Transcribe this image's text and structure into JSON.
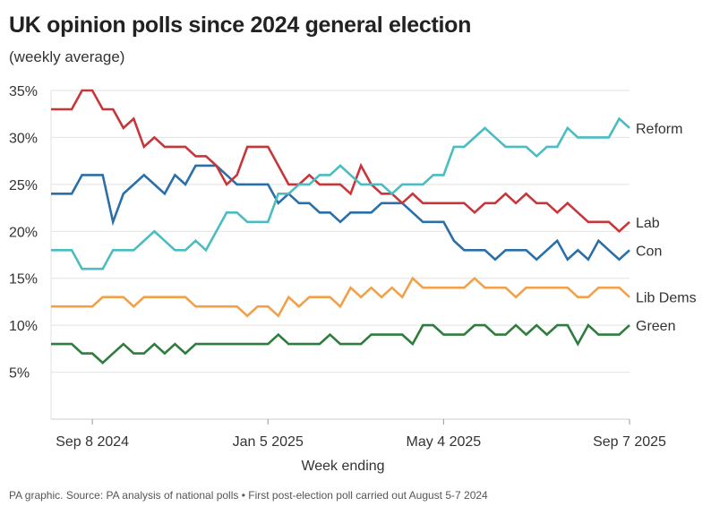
{
  "title": "UK opinion polls since 2024 general election",
  "subtitle": "(weekly average)",
  "footer": "PA graphic. Source: PA analysis of national polls • First post-election poll carried out August 5-7 2024",
  "chart_data": {
    "type": "line",
    "title": "UK opinion polls since 2024 general election",
    "subtitle": "(weekly average)",
    "xlabel": "Week ending",
    "ylabel": "",
    "ylim": [
      0,
      35
    ],
    "yticks": [
      5,
      10,
      15,
      20,
      25,
      30,
      35
    ],
    "ytick_labels": [
      "5%",
      "10%",
      "15%",
      "20%",
      "25%",
      "30%",
      "35%"
    ],
    "xtick_labels": [
      {
        "label": "Sep 8 2024",
        "date": "2024-09-08"
      },
      {
        "label": "Jan 5 2025",
        "date": "2025-01-05"
      },
      {
        "label": "May 4 2025",
        "date": "2025-05-04"
      },
      {
        "label": "Sep 7 2025",
        "date": "2025-09-07"
      }
    ],
    "grid": true,
    "legend": "right (labels at line ends)",
    "x": [
      "2024-08-11",
      "2024-08-18",
      "2024-08-25",
      "2024-09-01",
      "2024-09-08",
      "2024-09-15",
      "2024-09-22",
      "2024-09-29",
      "2024-10-06",
      "2024-10-13",
      "2024-10-20",
      "2024-10-27",
      "2024-11-03",
      "2024-11-10",
      "2024-11-17",
      "2024-11-24",
      "2024-12-01",
      "2024-12-08",
      "2024-12-15",
      "2024-12-22",
      "2024-12-29",
      "2025-01-05",
      "2025-01-12",
      "2025-01-19",
      "2025-01-26",
      "2025-02-02",
      "2025-02-09",
      "2025-02-16",
      "2025-02-23",
      "2025-03-02",
      "2025-03-09",
      "2025-03-16",
      "2025-03-23",
      "2025-03-30",
      "2025-04-06",
      "2025-04-13",
      "2025-04-20",
      "2025-04-27",
      "2025-05-04",
      "2025-05-11",
      "2025-05-18",
      "2025-05-25",
      "2025-06-01",
      "2025-06-08",
      "2025-06-15",
      "2025-06-22",
      "2025-06-29",
      "2025-07-06",
      "2025-07-13",
      "2025-07-20",
      "2025-07-27",
      "2025-08-03",
      "2025-08-10",
      "2025-08-17",
      "2025-08-24",
      "2025-08-31",
      "2025-09-07"
    ],
    "series": [
      {
        "name": "Green",
        "color": "#2e7d3e",
        "values": [
          8,
          8,
          8,
          7,
          7,
          6,
          7,
          8,
          7,
          7,
          8,
          7,
          8,
          7,
          8,
          8,
          8,
          8,
          8,
          8,
          8,
          8,
          9,
          8,
          8,
          8,
          8,
          9,
          8,
          8,
          8,
          9,
          9,
          9,
          9,
          8,
          10,
          10,
          9,
          9,
          9,
          10,
          10,
          9,
          9,
          10,
          9,
          10,
          9,
          10,
          10,
          8,
          10,
          9,
          9,
          9,
          10
        ]
      },
      {
        "name": "Lib Dems",
        "color": "#f0a14a",
        "values": [
          12,
          12,
          12,
          12,
          12,
          13,
          13,
          13,
          12,
          13,
          13,
          13,
          13,
          13,
          12,
          12,
          12,
          12,
          12,
          11,
          12,
          12,
          11,
          13,
          12,
          13,
          13,
          13,
          12,
          14,
          13,
          14,
          13,
          14,
          13,
          15,
          14,
          14,
          14,
          14,
          14,
          15,
          14,
          14,
          14,
          13,
          14,
          14,
          14,
          14,
          14,
          13,
          13,
          14,
          14,
          14,
          13
        ]
      },
      {
        "name": "Con",
        "color": "#2a6fa8",
        "values": [
          24,
          24,
          24,
          26,
          26,
          26,
          21,
          24,
          25,
          26,
          25,
          24,
          26,
          25,
          27,
          27,
          27,
          26,
          25,
          25,
          25,
          25,
          23,
          24,
          23,
          23,
          22,
          22,
          21,
          22,
          22,
          22,
          23,
          23,
          23,
          22,
          21,
          21,
          21,
          19,
          18,
          18,
          18,
          17,
          18,
          18,
          18,
          17,
          18,
          19,
          17,
          18,
          17,
          19,
          18,
          17,
          18
        ]
      },
      {
        "name": "Lab",
        "color": "#c8363a",
        "values": [
          33,
          33,
          33,
          35,
          35,
          33,
          33,
          31,
          32,
          29,
          30,
          29,
          29,
          29,
          28,
          28,
          27,
          25,
          26,
          29,
          29,
          29,
          27,
          25,
          25,
          26,
          25,
          25,
          25,
          24,
          27,
          25,
          24,
          24,
          23,
          24,
          23,
          23,
          23,
          23,
          23,
          22,
          23,
          23,
          24,
          23,
          24,
          23,
          23,
          22,
          23,
          22,
          21,
          21,
          21,
          20,
          21
        ]
      },
      {
        "name": "Reform",
        "color": "#4bbcc0",
        "values": [
          18,
          18,
          18,
          16,
          16,
          16,
          18,
          18,
          18,
          19,
          20,
          19,
          18,
          18,
          19,
          18,
          20,
          22,
          22,
          21,
          21,
          21,
          24,
          24,
          25,
          25,
          26,
          26,
          27,
          26,
          25,
          25,
          25,
          24,
          25,
          25,
          25,
          26,
          26,
          29,
          29,
          30,
          31,
          30,
          29,
          29,
          29,
          28,
          29,
          29,
          31,
          30,
          30,
          30,
          30,
          32,
          31
        ]
      }
    ]
  }
}
